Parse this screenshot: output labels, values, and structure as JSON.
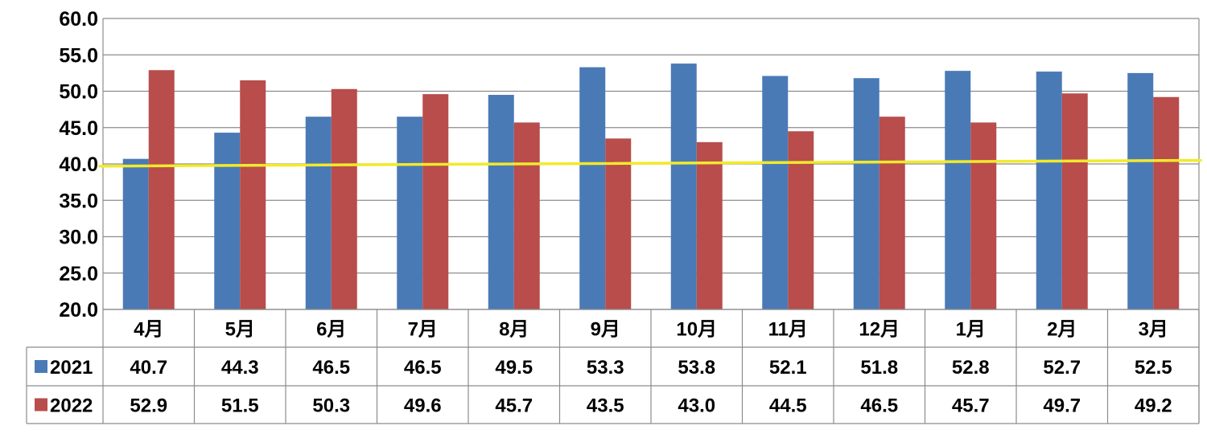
{
  "chart_data": {
    "type": "bar",
    "categories": [
      "4月",
      "5月",
      "6月",
      "7月",
      "8月",
      "9月",
      "10月",
      "11月",
      "12月",
      "1月",
      "2月",
      "3月"
    ],
    "series": [
      {
        "name": "2021",
        "color": "#4a7ab6",
        "values": [
          40.7,
          44.3,
          46.5,
          46.5,
          49.5,
          53.3,
          53.8,
          52.1,
          51.8,
          52.8,
          52.7,
          52.5
        ],
        "labels": [
          "40.7",
          "44.3",
          "46.5",
          "46.5",
          "49.5",
          "53.3",
          "53.8",
          "52.1",
          "51.8",
          "52.8",
          "52.7",
          "52.5"
        ]
      },
      {
        "name": "2022",
        "color": "#b84d4c",
        "values": [
          52.9,
          51.5,
          50.3,
          49.6,
          45.7,
          43.5,
          43.0,
          44.5,
          46.5,
          45.7,
          49.7,
          49.2
        ],
        "labels": [
          "52.9",
          "51.5",
          "50.3",
          "49.6",
          "45.7",
          "43.5",
          "43.0",
          "44.5",
          "46.5",
          "45.7",
          "49.7",
          "49.2"
        ]
      }
    ],
    "ylim": [
      20,
      60
    ],
    "yticks": [
      "20.0",
      "25.0",
      "30.0",
      "35.0",
      "40.0",
      "45.0",
      "50.0",
      "55.0",
      "60.0"
    ],
    "reference_line": {
      "color": "#f2ea2b",
      "y_start": 39.7,
      "y_end": 40.5
    },
    "grid": true,
    "data_table": true,
    "title": "",
    "xlabel": "",
    "ylabel": ""
  }
}
